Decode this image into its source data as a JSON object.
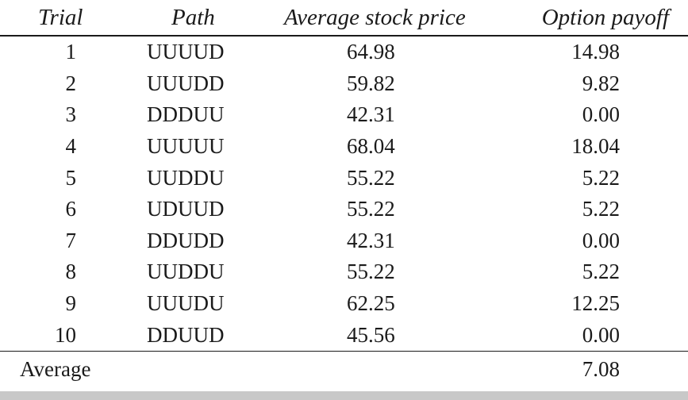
{
  "table": {
    "headers": {
      "trial": "Trial",
      "path": "Path",
      "avg_price": "Average stock price",
      "payoff": "Option payoff"
    },
    "rows": [
      {
        "trial": "1",
        "path": "UUUUD",
        "avg_price": "64.98",
        "payoff": "14.98"
      },
      {
        "trial": "2",
        "path": "UUUDD",
        "avg_price": "59.82",
        "payoff": "9.82"
      },
      {
        "trial": "3",
        "path": "DDDUU",
        "avg_price": "42.31",
        "payoff": "0.00"
      },
      {
        "trial": "4",
        "path": "UUUUU",
        "avg_price": "68.04",
        "payoff": "18.04"
      },
      {
        "trial": "5",
        "path": "UUDDU",
        "avg_price": "55.22",
        "payoff": "5.22"
      },
      {
        "trial": "6",
        "path": "UDUUD",
        "avg_price": "55.22",
        "payoff": "5.22"
      },
      {
        "trial": "7",
        "path": "DDUDD",
        "avg_price": "42.31",
        "payoff": "0.00"
      },
      {
        "trial": "8",
        "path": "UUDDU",
        "avg_price": "55.22",
        "payoff": "5.22"
      },
      {
        "trial": "9",
        "path": "UUUDU",
        "avg_price": "62.25",
        "payoff": "12.25"
      },
      {
        "trial": "10",
        "path": "DDUUD",
        "avg_price": "45.56",
        "payoff": "0.00"
      }
    ],
    "footer": {
      "label": "Average",
      "payoff": "7.08"
    }
  }
}
